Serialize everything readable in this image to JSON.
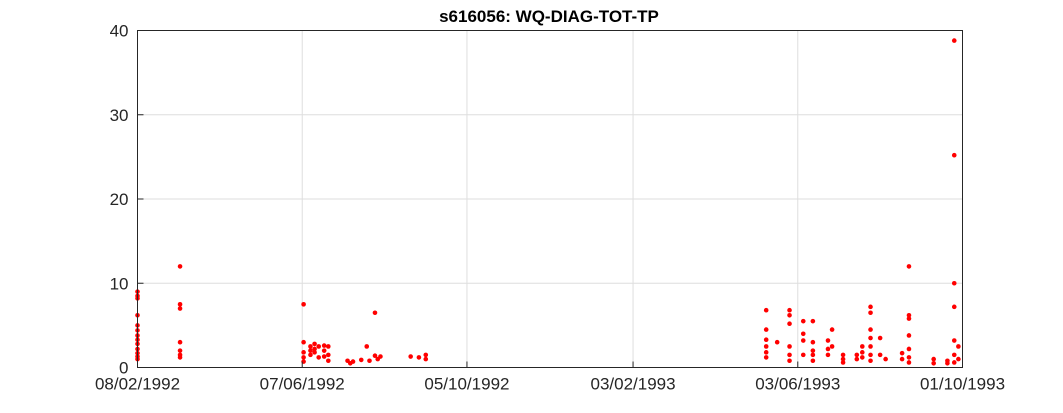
{
  "chart_data": {
    "type": "scatter",
    "title": "s616056: WQ-DIAG-TOT-TP",
    "xlabel": "",
    "ylabel": "",
    "x_axis_type": "date",
    "xlim": [
      "08/02/1992",
      "01/10/1993"
    ],
    "ylim": [
      0,
      40
    ],
    "x_ticks": [
      "08/02/1992",
      "07/06/1992",
      "05/10/1992",
      "03/02/1993",
      "03/06/1993",
      "01/10/1993"
    ],
    "y_ticks": [
      0,
      10,
      20,
      30,
      40
    ],
    "grid": true,
    "marker_color": "#ff0000",
    "series": [
      {
        "points": [
          {
            "x": "08/02/1992",
            "y": 9.0
          },
          {
            "x": "08/02/1992",
            "y": 8.5
          },
          {
            "x": "08/02/1992",
            "y": 8.2
          },
          {
            "x": "08/02/1992",
            "y": 6.2
          },
          {
            "x": "08/02/1992",
            "y": 5.0
          },
          {
            "x": "08/02/1992",
            "y": 4.4
          },
          {
            "x": "08/02/1992",
            "y": 3.8
          },
          {
            "x": "08/02/1992",
            "y": 3.3
          },
          {
            "x": "08/02/1992",
            "y": 2.8
          },
          {
            "x": "08/02/1992",
            "y": 2.2
          },
          {
            "x": "08/02/1992",
            "y": 1.7
          },
          {
            "x": "08/02/1992",
            "y": 1.3
          },
          {
            "x": "08/02/1992",
            "y": 1.0
          },
          {
            "x": "10/03/1992",
            "y": 12.0
          },
          {
            "x": "10/03/1992",
            "y": 7.5
          },
          {
            "x": "10/03/1992",
            "y": 7.0
          },
          {
            "x": "10/03/1992",
            "y": 3.0
          },
          {
            "x": "10/03/1992",
            "y": 2.0
          },
          {
            "x": "10/03/1992",
            "y": 1.5
          },
          {
            "x": "10/03/1992",
            "y": 1.2
          },
          {
            "x": "08/06/1992",
            "y": 7.5
          },
          {
            "x": "08/06/1992",
            "y": 3.0
          },
          {
            "x": "08/06/1992",
            "y": 1.8
          },
          {
            "x": "08/06/1992",
            "y": 1.2
          },
          {
            "x": "08/06/1992",
            "y": 0.7
          },
          {
            "x": "13/06/1992",
            "y": 2.5
          },
          {
            "x": "13/06/1992",
            "y": 2.0
          },
          {
            "x": "13/06/1992",
            "y": 1.5
          },
          {
            "x": "16/06/1992",
            "y": 2.8
          },
          {
            "x": "16/06/1992",
            "y": 2.2
          },
          {
            "x": "16/06/1992",
            "y": 1.8
          },
          {
            "x": "19/06/1992",
            "y": 2.5
          },
          {
            "x": "19/06/1992",
            "y": 1.2
          },
          {
            "x": "23/06/1992",
            "y": 2.6
          },
          {
            "x": "23/06/1992",
            "y": 2.0
          },
          {
            "x": "23/06/1992",
            "y": 1.3
          },
          {
            "x": "26/06/1992",
            "y": 2.5
          },
          {
            "x": "26/06/1992",
            "y": 1.5
          },
          {
            "x": "26/06/1992",
            "y": 0.8
          },
          {
            "x": "10/07/1992",
            "y": 0.8
          },
          {
            "x": "12/07/1992",
            "y": 0.5
          },
          {
            "x": "14/07/1992",
            "y": 0.7
          },
          {
            "x": "20/07/1992",
            "y": 0.9
          },
          {
            "x": "24/07/1992",
            "y": 2.5
          },
          {
            "x": "26/07/1992",
            "y": 0.8
          },
          {
            "x": "30/07/1992",
            "y": 6.5
          },
          {
            "x": "30/07/1992",
            "y": 1.4
          },
          {
            "x": "01/08/1992",
            "y": 1.0
          },
          {
            "x": "03/08/1992",
            "y": 1.3
          },
          {
            "x": "25/08/1992",
            "y": 1.3
          },
          {
            "x": "31/08/1992",
            "y": 1.2
          },
          {
            "x": "05/09/1992",
            "y": 1.5
          },
          {
            "x": "05/09/1992",
            "y": 1.0
          },
          {
            "x": "11/05/1993",
            "y": 6.8
          },
          {
            "x": "11/05/1993",
            "y": 4.5
          },
          {
            "x": "11/05/1993",
            "y": 3.3
          },
          {
            "x": "11/05/1993",
            "y": 2.5
          },
          {
            "x": "11/05/1993",
            "y": 1.8
          },
          {
            "x": "11/05/1993",
            "y": 1.2
          },
          {
            "x": "19/05/1993",
            "y": 3.0
          },
          {
            "x": "28/05/1993",
            "y": 6.8
          },
          {
            "x": "28/05/1993",
            "y": 6.2
          },
          {
            "x": "28/05/1993",
            "y": 5.2
          },
          {
            "x": "28/05/1993",
            "y": 2.5
          },
          {
            "x": "28/05/1993",
            "y": 1.5
          },
          {
            "x": "28/05/1993",
            "y": 0.8
          },
          {
            "x": "07/06/1993",
            "y": 5.5
          },
          {
            "x": "07/06/1993",
            "y": 4.0
          },
          {
            "x": "07/06/1993",
            "y": 3.2
          },
          {
            "x": "07/06/1993",
            "y": 1.5
          },
          {
            "x": "14/06/1993",
            "y": 5.5
          },
          {
            "x": "14/06/1993",
            "y": 3.0
          },
          {
            "x": "14/06/1993",
            "y": 2.0
          },
          {
            "x": "14/06/1993",
            "y": 1.5
          },
          {
            "x": "14/06/1993",
            "y": 0.8
          },
          {
            "x": "25/06/1993",
            "y": 3.2
          },
          {
            "x": "25/06/1993",
            "y": 2.2
          },
          {
            "x": "25/06/1993",
            "y": 1.5
          },
          {
            "x": "28/06/1993",
            "y": 4.5
          },
          {
            "x": "28/06/1993",
            "y": 2.5
          },
          {
            "x": "06/07/1993",
            "y": 1.5
          },
          {
            "x": "06/07/1993",
            "y": 1.0
          },
          {
            "x": "06/07/1993",
            "y": 0.6
          },
          {
            "x": "16/07/1993",
            "y": 1.5
          },
          {
            "x": "16/07/1993",
            "y": 1.0
          },
          {
            "x": "20/07/1993",
            "y": 2.5
          },
          {
            "x": "20/07/1993",
            "y": 1.8
          },
          {
            "x": "20/07/1993",
            "y": 1.2
          },
          {
            "x": "26/07/1993",
            "y": 7.2
          },
          {
            "x": "26/07/1993",
            "y": 6.5
          },
          {
            "x": "26/07/1993",
            "y": 4.5
          },
          {
            "x": "26/07/1993",
            "y": 3.5
          },
          {
            "x": "26/07/1993",
            "y": 2.5
          },
          {
            "x": "26/07/1993",
            "y": 1.5
          },
          {
            "x": "26/07/1993",
            "y": 0.8
          },
          {
            "x": "02/08/1993",
            "y": 3.5
          },
          {
            "x": "02/08/1993",
            "y": 1.5
          },
          {
            "x": "06/08/1993",
            "y": 1.0
          },
          {
            "x": "18/08/1993",
            "y": 1.7
          },
          {
            "x": "18/08/1993",
            "y": 1.0
          },
          {
            "x": "23/08/1993",
            "y": 12.0
          },
          {
            "x": "23/08/1993",
            "y": 6.2
          },
          {
            "x": "23/08/1993",
            "y": 5.8
          },
          {
            "x": "23/08/1993",
            "y": 3.8
          },
          {
            "x": "23/08/1993",
            "y": 2.2
          },
          {
            "x": "23/08/1993",
            "y": 1.2
          },
          {
            "x": "23/08/1993",
            "y": 0.6
          },
          {
            "x": "10/09/1993",
            "y": 1.0
          },
          {
            "x": "10/09/1993",
            "y": 0.5
          },
          {
            "x": "20/09/1993",
            "y": 0.8
          },
          {
            "x": "20/09/1993",
            "y": 0.5
          },
          {
            "x": "25/09/1993",
            "y": 38.8
          },
          {
            "x": "25/09/1993",
            "y": 25.2
          },
          {
            "x": "25/09/1993",
            "y": 10.0
          },
          {
            "x": "25/09/1993",
            "y": 7.2
          },
          {
            "x": "25/09/1993",
            "y": 3.2
          },
          {
            "x": "25/09/1993",
            "y": 1.5
          },
          {
            "x": "25/09/1993",
            "y": 0.6
          },
          {
            "x": "28/09/1993",
            "y": 2.5
          },
          {
            "x": "28/09/1993",
            "y": 1.0
          }
        ]
      }
    ]
  }
}
